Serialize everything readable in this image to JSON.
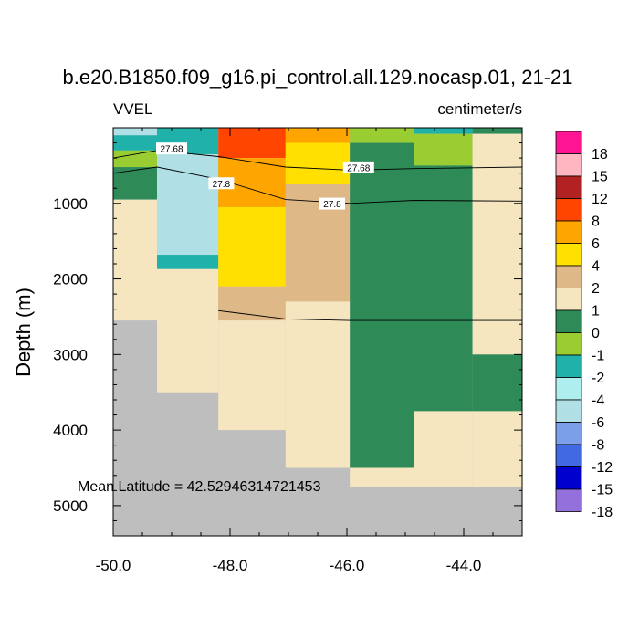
{
  "chart_data": {
    "type": "heatmap",
    "title": "b.e20.B1850.f09_g16.pi_control.all.129.nocasp.01, 21-21",
    "left_label": "VVEL",
    "right_label": "centimeter/s",
    "ylabel": "Depth (m)",
    "xlabel": "",
    "xlim": [
      -50.0,
      -43.0
    ],
    "ylim": [
      5400,
      0
    ],
    "x_ticks": [
      -50.0,
      -48.0,
      -46.0,
      -44.0
    ],
    "x_tick_labels": [
      "-50.0",
      "-48.0",
      "-46.0",
      "-44.0"
    ],
    "y_ticks": [
      1000,
      2000,
      3000,
      4000,
      5000
    ],
    "y_tick_labels": [
      "1000",
      "2000",
      "3000",
      "4000",
      "5000"
    ],
    "annotation": "Mean Latitude = 42.52946314721453",
    "land_color": "#bebebe",
    "colorbar": {
      "labels": [
        "18",
        "15",
        "12",
        "8",
        "6",
        "4",
        "2",
        "1",
        "0",
        "-1",
        "-2",
        "-4",
        "-6",
        "-8",
        "-12",
        "-15",
        "-18"
      ],
      "colors": [
        "#ff1493",
        "#ffb6c1",
        "#b22222",
        "#ff4500",
        "#ffa500",
        "#ffe000",
        "#deb887",
        "#f5e6c0",
        "#2e8b57",
        "#9acd32",
        "#20b2aa",
        "#afeeee",
        "#b0e0e6",
        "#7b9fe8",
        "#4169e1",
        "#0000cd",
        "#9370db"
      ]
    },
    "columns": [
      {
        "x0": -50.0,
        "x1": -49.25,
        "bottom": 2550,
        "cells": [
          [
            0,
            100,
            "#b0e0e6"
          ],
          [
            100,
            300,
            "#20b2aa"
          ],
          [
            300,
            520,
            "#9acd32"
          ],
          [
            520,
            950,
            "#2e8b57"
          ],
          [
            950,
            2550,
            "#f5e6c0"
          ]
        ]
      },
      {
        "x0": -49.25,
        "x1": -48.2,
        "bottom": 3500,
        "cells": [
          [
            0,
            350,
            "#20b2aa"
          ],
          [
            350,
            1680,
            "#b0e0e6"
          ],
          [
            1680,
            1870,
            "#20b2aa"
          ],
          [
            1870,
            3500,
            "#f5e6c0"
          ]
        ]
      },
      {
        "x0": -48.2,
        "x1": -47.05,
        "bottom": 4000,
        "cells": [
          [
            0,
            400,
            "#ff4500"
          ],
          [
            400,
            750,
            "#ffa500"
          ],
          [
            750,
            1050,
            "#ffa500"
          ],
          [
            1050,
            2100,
            "#ffe000"
          ],
          [
            2100,
            2550,
            "#deb887"
          ],
          [
            2550,
            4000,
            "#f5e6c0"
          ]
        ]
      },
      {
        "x0": -47.05,
        "x1": -45.95,
        "bottom": 4500,
        "cells": [
          [
            0,
            200,
            "#ffa500"
          ],
          [
            200,
            750,
            "#ffe000"
          ],
          [
            750,
            2300,
            "#deb887"
          ],
          [
            2300,
            4500,
            "#f5e6c0"
          ]
        ]
      },
      {
        "x0": -45.95,
        "x1": -44.85,
        "bottom": 4750,
        "cells": [
          [
            0,
            200,
            "#9acd32"
          ],
          [
            200,
            4500,
            "#2e8b57"
          ],
          [
            4500,
            4750,
            "#f5e6c0"
          ]
        ]
      },
      {
        "x0": -44.85,
        "x1": -43.85,
        "bottom": 4750,
        "cells": [
          [
            0,
            80,
            "#20b2aa"
          ],
          [
            80,
            500,
            "#9acd32"
          ],
          [
            500,
            3750,
            "#2e8b57"
          ],
          [
            3750,
            4750,
            "#f5e6c0"
          ]
        ]
      },
      {
        "x0": -43.85,
        "x1": -43.0,
        "bottom": 4750,
        "cells": [
          [
            0,
            80,
            "#2e8b57"
          ],
          [
            80,
            3000,
            "#f5e6c0"
          ],
          [
            3000,
            3750,
            "#2e8b57"
          ],
          [
            3750,
            4750,
            "#f5e6c0"
          ]
        ]
      }
    ],
    "contours": [
      {
        "level": "27.68",
        "points": [
          [
            -50.0,
            400
          ],
          [
            -49.25,
            300
          ],
          [
            -48.2,
            380
          ],
          [
            -47.05,
            520
          ],
          [
            -45.95,
            560
          ],
          [
            -44.85,
            540
          ],
          [
            -43.0,
            520
          ]
        ],
        "label_at": [
          -49.0,
          280
        ],
        "label_at2": [
          -45.8,
          530
        ]
      },
      {
        "level": "27.8",
        "points": [
          [
            -50.0,
            600
          ],
          [
            -49.25,
            520
          ],
          [
            -48.2,
            680
          ],
          [
            -47.05,
            950
          ],
          [
            -45.95,
            1000
          ],
          [
            -44.85,
            960
          ],
          [
            -43.0,
            970
          ]
        ],
        "label_at": [
          -48.15,
          740
        ],
        "label_at2": [
          -46.25,
          1010
        ]
      },
      {
        "level": "",
        "points": [
          [
            -48.2,
            2420
          ],
          [
            -47.05,
            2530
          ],
          [
            -45.95,
            2550
          ],
          [
            -44.85,
            2550
          ],
          [
            -43.0,
            2550
          ]
        ]
      }
    ]
  }
}
